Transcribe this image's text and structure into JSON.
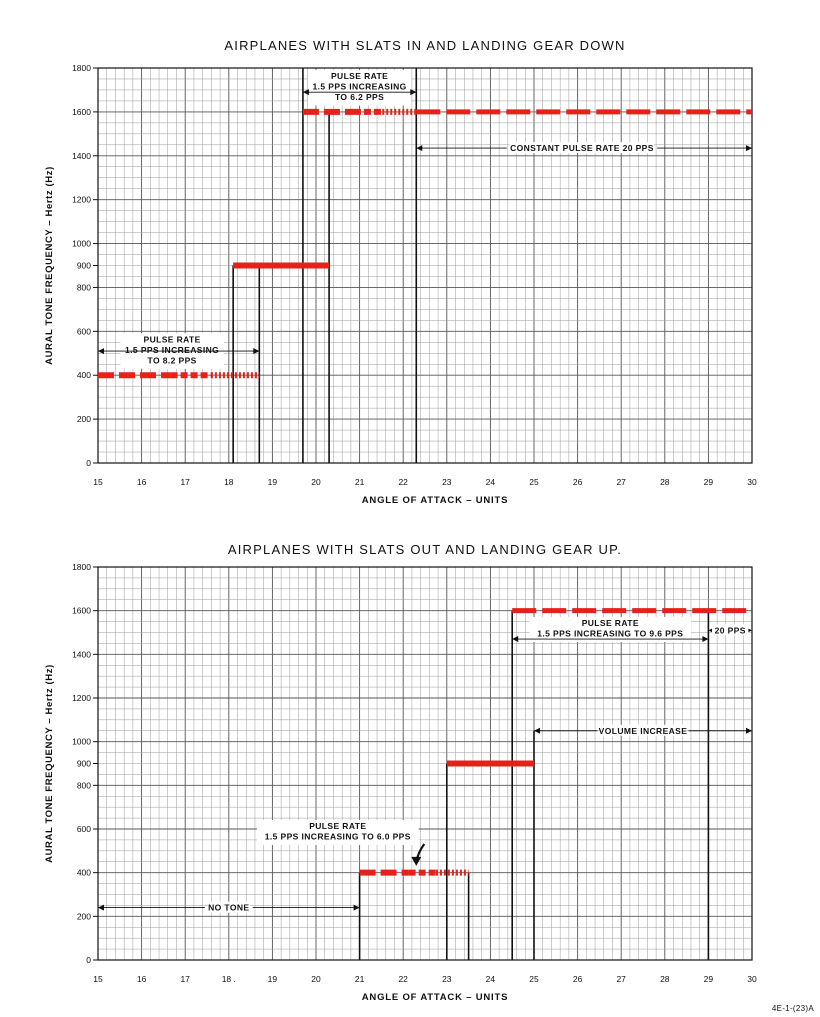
{
  "figure_ref": "4E-1-(23)A",
  "chart_data": [
    {
      "type": "line",
      "title": "AIRPLANES WITH SLATS IN AND LANDING GEAR DOWN",
      "xlabel": "ANGLE OF ATTACK – UNITS",
      "ylabel": "AURAL TONE FREQUENCY – Hertz (Hz)",
      "xlim": [
        15,
        30
      ],
      "ylim": [
        0,
        1800
      ],
      "x_ticks": [
        "15",
        "16",
        "17",
        "18",
        "19",
        "20",
        "21",
        "22",
        "23",
        "24",
        "25",
        "26",
        "27",
        "28",
        "29",
        "30"
      ],
      "y_ticks": [
        {
          "v": 0,
          "label": "0"
        },
        {
          "v": 200,
          "label": "200"
        },
        {
          "v": 400,
          "label": "400"
        },
        {
          "v": 600,
          "label": "600"
        },
        {
          "v": 800,
          "label": "800"
        },
        {
          "v": 900,
          "label": "900"
        },
        {
          "v": 1000,
          "label": "1000"
        },
        {
          "v": 1200,
          "label": "1200"
        },
        {
          "v": 1400,
          "label": "1400"
        },
        {
          "v": 1600,
          "label": "1600"
        },
        {
          "v": 1800,
          "label": "1800"
        }
      ],
      "grid": true,
      "tone_color": "#e8201a",
      "segments": [
        {
          "x0": 15.0,
          "x1": 18.7,
          "y": 400,
          "style": "pulse"
        },
        {
          "x0": 18.1,
          "x1": 20.3,
          "y": 900,
          "style": "solid"
        },
        {
          "x0": 19.7,
          "x1": 22.3,
          "y": 1600,
          "style": "pulse"
        },
        {
          "x0": 22.3,
          "x1": 30.0,
          "y": 1600,
          "style": "dashed"
        }
      ],
      "boundaries": [
        {
          "x": 18.1,
          "y": 900
        },
        {
          "x": 18.7,
          "y": 900
        },
        {
          "x": 19.7,
          "y": 1800
        },
        {
          "x": 20.3,
          "y": 1600
        },
        {
          "x": 22.3,
          "y": 1800
        }
      ],
      "annotations": [
        {
          "lines": [
            "PULSE RATE",
            "1.5 PPS INCREASING",
            "TO 8.2 PPS"
          ],
          "x": 16.7,
          "y": 550,
          "arrow": {
            "x0": 15.0,
            "x1": 18.7,
            "y": 510
          }
        },
        {
          "lines": [
            "PULSE RATE",
            "1.5 PPS INCREASING",
            "TO 6.2 PPS"
          ],
          "x": 21.0,
          "y": 1750,
          "arrow": {
            "x0": 19.7,
            "x1": 22.3,
            "y": 1690
          }
        },
        {
          "lines": [
            "CONSTANT PULSE RATE 20 PPS"
          ],
          "x": 26.1,
          "y": 1435,
          "arrow": {
            "x0": 22.3,
            "x1": 30.0,
            "y": 1435
          }
        }
      ]
    },
    {
      "type": "line",
      "title": "AIRPLANES WITH SLATS OUT AND LANDING GEAR UP.",
      "xlabel": "ANGLE OF ATTACK – UNITS",
      "ylabel": "AURAL TONE FREQUENCY – Hertz (Hz)",
      "xlim": [
        15,
        30
      ],
      "ylim": [
        0,
        1800
      ],
      "x_ticks": [
        "15",
        "16",
        "17",
        "18 .",
        "19",
        "20",
        "21",
        "22",
        "23",
        "24",
        "25",
        "26",
        "27",
        "28",
        "29",
        "30"
      ],
      "y_ticks": [
        {
          "v": 0,
          "label": "0"
        },
        {
          "v": 200,
          "label": "200"
        },
        {
          "v": 400,
          "label": "400"
        },
        {
          "v": 600,
          "label": "600"
        },
        {
          "v": 800,
          "label": "800"
        },
        {
          "v": 900,
          "label": "900"
        },
        {
          "v": 1000,
          "label": "1000"
        },
        {
          "v": 1200,
          "label": "1200"
        },
        {
          "v": 1400,
          "label": "1400"
        },
        {
          "v": 1600,
          "label": "1600"
        },
        {
          "v": 1800,
          "label": "1800"
        }
      ],
      "grid": true,
      "tone_color": "#e8201a",
      "segments": [
        {
          "x0": 21.0,
          "x1": 23.5,
          "y": 400,
          "style": "pulse"
        },
        {
          "x0": 23.0,
          "x1": 25.0,
          "y": 900,
          "style": "solid"
        },
        {
          "x0": 24.5,
          "x1": 30.0,
          "y": 1600,
          "style": "dashed"
        }
      ],
      "boundaries": [
        {
          "x": 21.0,
          "y": 400
        },
        {
          "x": 23.0,
          "y": 900
        },
        {
          "x": 23.5,
          "y": 400
        },
        {
          "x": 24.5,
          "y": 1600
        },
        {
          "x": 25.0,
          "y": 1050
        },
        {
          "x": 29.0,
          "y": 1600
        }
      ],
      "annotations": [
        {
          "lines": [
            "NO TONE"
          ],
          "x": 18.0,
          "y": 240,
          "arrow": {
            "x0": 15.0,
            "x1": 21.0,
            "y": 240
          }
        },
        {
          "lines": [
            "PULSE RATE",
            "1.5 PPS INCREASING TO 6.0 PPS"
          ],
          "x": 20.5,
          "y": 600,
          "arrow": {
            "x0": 22.25,
            "x1": 22.35,
            "y": 440
          }
        },
        {
          "lines": [
            "PULSE RATE",
            "1.5 PPS INCREASING TO 9.6 PPS"
          ],
          "x": 26.75,
          "y": 1530,
          "arrow": {
            "x0": 24.5,
            "x1": 29.0,
            "y": 1470
          }
        },
        {
          "lines": [
            "20 PPS"
          ],
          "x": 29.5,
          "y": 1510,
          "arrow": {
            "x0": 29.0,
            "x1": 30.0,
            "y": 1510
          }
        },
        {
          "lines": [
            "VOLUME INCREASE"
          ],
          "x": 27.5,
          "y": 1050,
          "arrow": {
            "x0": 25.0,
            "x1": 30.0,
            "y": 1050
          }
        }
      ]
    }
  ]
}
